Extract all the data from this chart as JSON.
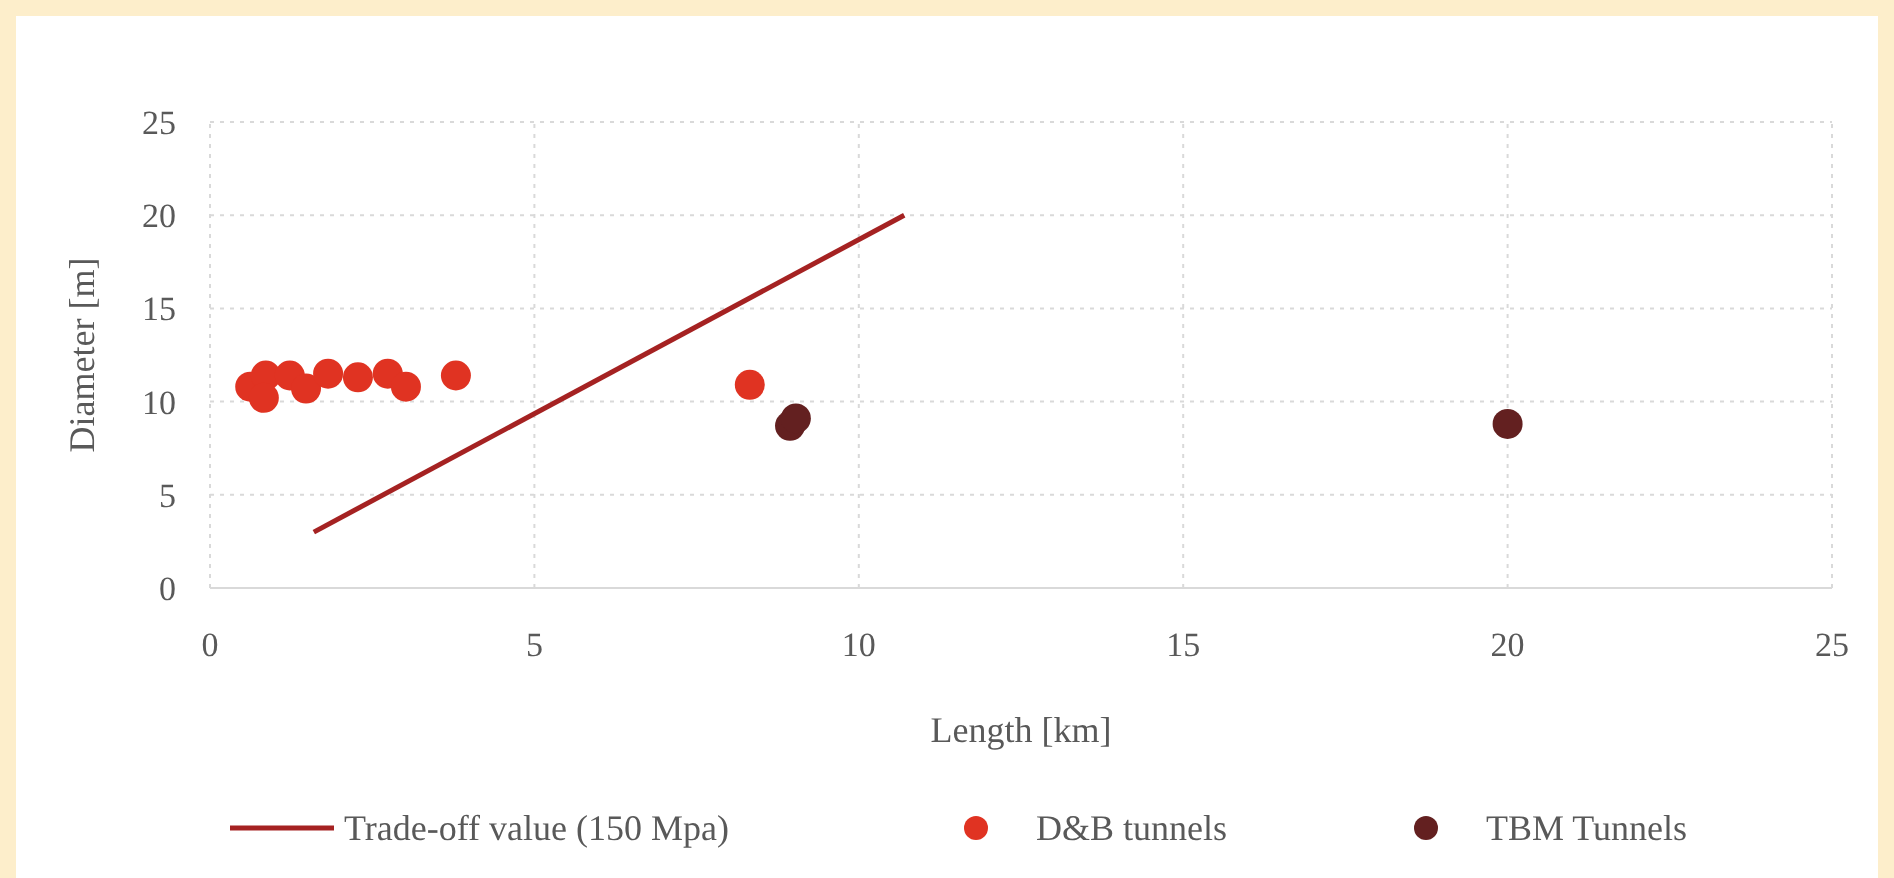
{
  "chart_data": {
    "type": "scatter",
    "xlabel": "Length [km]",
    "ylabel": "Diameter [m]",
    "xlim": [
      0,
      25
    ],
    "ylim": [
      0,
      25
    ],
    "xticks": [
      0,
      5,
      10,
      15,
      20,
      25
    ],
    "yticks": [
      0,
      5,
      10,
      15,
      20,
      25
    ],
    "grid": true,
    "legend": "bottom",
    "marker": "circle",
    "series": [
      {
        "name": "Trade-off value (150 Mpa)",
        "type": "line",
        "color": "#a52222",
        "x": [
          1.6,
          10.7
        ],
        "values": [
          3,
          20
        ],
        "marker": "none"
      },
      {
        "name": "D&B tunnels",
        "color": "#e03322",
        "x": [
          0.62,
          0.86,
          0.83,
          1.23,
          1.48,
          1.82,
          2.28,
          2.74,
          3.02,
          3.79,
          8.32
        ],
        "values": [
          10.8,
          11.4,
          10.2,
          11.4,
          10.7,
          11.5,
          11.3,
          11.5,
          10.8,
          11.4,
          10.9
        ]
      },
      {
        "name": "TBM Tunnels",
        "color": "#632020",
        "x": [
          8.94,
          9.03,
          20.0
        ],
        "values": [
          8.7,
          9.1,
          8.8
        ]
      }
    ]
  }
}
